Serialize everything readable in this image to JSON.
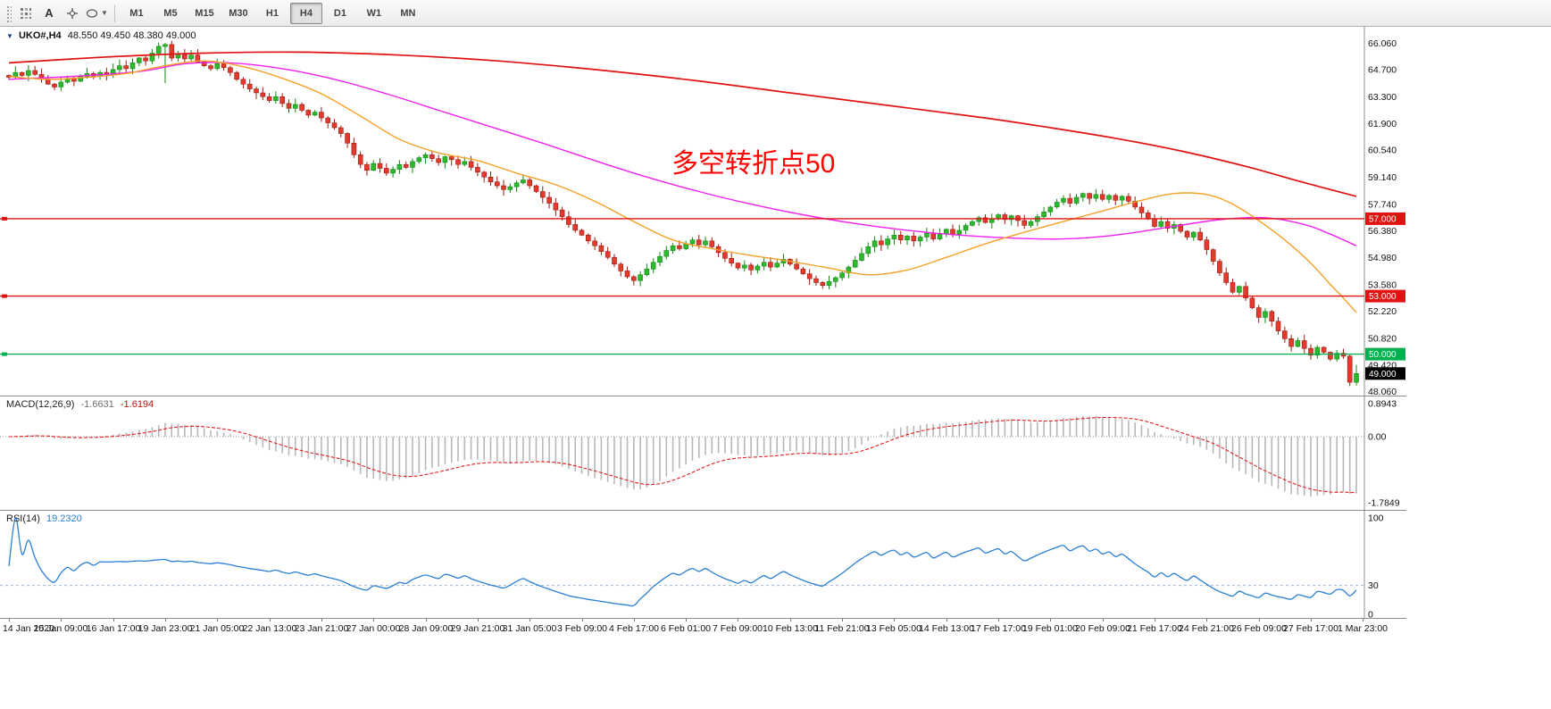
{
  "toolbar": {
    "tools": [
      {
        "name": "pattern",
        "label": ""
      },
      {
        "name": "annotation",
        "label": "A"
      },
      {
        "name": "crosshair",
        "label": ""
      },
      {
        "name": "shapes",
        "label": ""
      }
    ],
    "timeframes": [
      {
        "label": "M1",
        "active": false
      },
      {
        "label": "M5",
        "active": false
      },
      {
        "label": "M15",
        "active": false
      },
      {
        "label": "M30",
        "active": false
      },
      {
        "label": "H1",
        "active": false
      },
      {
        "label": "H4",
        "active": true
      },
      {
        "label": "D1",
        "active": false
      },
      {
        "label": "W1",
        "active": false
      },
      {
        "label": "MN",
        "active": false
      }
    ]
  },
  "chart": {
    "title_symbol": "UKO#,H4",
    "title_ohlc": "48.550 49.450 48.380 49.000",
    "annotation_text": "多空转折点50",
    "annotation_color": "#ff0000",
    "price_axis_labels": [
      "66.060",
      "64.700",
      "63.300",
      "61.900",
      "60.540",
      "59.140",
      "57.740",
      "56.380",
      "54.980",
      "53.580",
      "52.220",
      "50.820",
      "49.420",
      "48.060"
    ],
    "hlines": [
      {
        "price": 57.0,
        "label": "57.000",
        "color": "#e01212"
      },
      {
        "price": 53.0,
        "label": "53.000",
        "color": "#e01212"
      },
      {
        "price": 50.0,
        "label": "50.000",
        "color": "#00b050"
      }
    ],
    "current_price": {
      "value": 49.0,
      "label": "49.000",
      "badge_color": "#000000"
    }
  },
  "chart_data": {
    "type": "candlestick",
    "symbol": "UKO#",
    "period": "H4",
    "bars": 208,
    "price_range": [
      47.95,
      66.45
    ],
    "closes": [
      64.3,
      64.55,
      64.4,
      64.65,
      64.45,
      64.2,
      63.95,
      63.8,
      64.05,
      64.25,
      64.1,
      64.35,
      64.5,
      64.35,
      64.55,
      64.45,
      64.7,
      64.9,
      64.75,
      65.05,
      65.3,
      65.15,
      65.55,
      65.9,
      66.0,
      65.3,
      65.5,
      65.25,
      65.45,
      65.1,
      64.9,
      64.75,
      65.0,
      64.8,
      64.55,
      64.2,
      63.95,
      63.7,
      63.5,
      63.3,
      63.1,
      63.3,
      62.95,
      62.7,
      62.9,
      62.6,
      62.35,
      62.5,
      62.2,
      61.95,
      61.7,
      61.4,
      60.9,
      60.3,
      59.8,
      59.5,
      59.85,
      59.6,
      59.35,
      59.55,
      59.8,
      59.65,
      59.95,
      60.15,
      60.3,
      60.1,
      59.9,
      60.2,
      60.05,
      59.8,
      59.95,
      59.65,
      59.4,
      59.15,
      58.9,
      58.7,
      58.5,
      58.65,
      58.85,
      59.0,
      58.7,
      58.4,
      58.1,
      57.8,
      57.45,
      57.1,
      56.7,
      56.4,
      56.15,
      55.85,
      55.6,
      55.3,
      55.0,
      54.65,
      54.3,
      54.0,
      53.8,
      54.1,
      54.4,
      54.75,
      55.05,
      55.35,
      55.6,
      55.45,
      55.7,
      55.9,
      55.65,
      55.85,
      55.55,
      55.25,
      54.95,
      54.7,
      54.45,
      54.6,
      54.35,
      54.55,
      54.75,
      54.5,
      54.7,
      54.9,
      54.65,
      54.4,
      54.15,
      53.9,
      53.7,
      53.55,
      53.75,
      53.95,
      54.2,
      54.5,
      54.85,
      55.2,
      55.55,
      55.85,
      55.65,
      55.95,
      56.15,
      55.9,
      56.1,
      55.85,
      56.05,
      56.25,
      55.95,
      56.2,
      56.45,
      56.2,
      56.4,
      56.65,
      56.85,
      57.05,
      56.8,
      57.0,
      57.2,
      56.95,
      57.15,
      56.9,
      56.65,
      56.85,
      57.1,
      57.35,
      57.6,
      57.85,
      58.05,
      57.8,
      58.1,
      58.3,
      58.05,
      58.25,
      58.0,
      58.2,
      57.95,
      58.15,
      57.9,
      57.6,
      57.3,
      57.0,
      56.6,
      56.85,
      56.5,
      56.7,
      56.35,
      56.05,
      56.3,
      55.9,
      55.4,
      54.8,
      54.2,
      53.7,
      53.2,
      53.5,
      52.9,
      52.4,
      51.9,
      52.2,
      51.7,
      51.2,
      50.8,
      50.4,
      50.7,
      50.3,
      49.95,
      50.35,
      50.1,
      49.75,
      50.05,
      49.9,
      48.55,
      49.0
    ],
    "special_bars": [
      {
        "i": 24,
        "low": 64.0
      },
      {
        "i": 207,
        "open": 48.55,
        "high": 49.45,
        "low": 48.38,
        "close": 49.0
      }
    ],
    "ma_lines": [
      {
        "name": "ma-red",
        "color": "#e01212",
        "width": 1.7,
        "points": [
          [
            0,
            65.05
          ],
          [
            15,
            65.35
          ],
          [
            30,
            65.55
          ],
          [
            45,
            65.6
          ],
          [
            60,
            65.45
          ],
          [
            75,
            65.15
          ],
          [
            90,
            64.7
          ],
          [
            105,
            64.15
          ],
          [
            120,
            63.5
          ],
          [
            135,
            62.85
          ],
          [
            150,
            62.2
          ],
          [
            160,
            61.7
          ],
          [
            170,
            61.15
          ],
          [
            180,
            60.5
          ],
          [
            190,
            59.7
          ],
          [
            198,
            58.95
          ],
          [
            207,
            58.15
          ]
        ]
      },
      {
        "name": "ma-magenta",
        "color": "#f020f0",
        "width": 1.4,
        "points": [
          [
            0,
            64.2
          ],
          [
            10,
            64.35
          ],
          [
            20,
            64.6
          ],
          [
            27,
            65.0
          ],
          [
            34,
            65.05
          ],
          [
            42,
            64.75
          ],
          [
            50,
            64.2
          ],
          [
            58,
            63.45
          ],
          [
            66,
            62.6
          ],
          [
            74,
            61.75
          ],
          [
            82,
            60.9
          ],
          [
            90,
            60.0
          ],
          [
            98,
            59.15
          ],
          [
            106,
            58.4
          ],
          [
            114,
            57.75
          ],
          [
            122,
            57.2
          ],
          [
            130,
            56.75
          ],
          [
            138,
            56.4
          ],
          [
            146,
            56.15
          ],
          [
            154,
            56.0
          ],
          [
            162,
            55.95
          ],
          [
            170,
            56.15
          ],
          [
            178,
            56.55
          ],
          [
            186,
            56.95
          ],
          [
            193,
            57.05
          ],
          [
            199,
            56.7
          ],
          [
            203,
            56.2
          ],
          [
            207,
            55.6
          ]
        ]
      },
      {
        "name": "ma-orange",
        "color": "#f5a028",
        "width": 1.4,
        "points": [
          [
            0,
            64.35
          ],
          [
            6,
            64.2
          ],
          [
            12,
            64.3
          ],
          [
            18,
            64.5
          ],
          [
            24,
            64.9
          ],
          [
            30,
            65.15
          ],
          [
            36,
            64.85
          ],
          [
            42,
            64.25
          ],
          [
            48,
            63.45
          ],
          [
            54,
            62.3
          ],
          [
            60,
            61.1
          ],
          [
            66,
            60.4
          ],
          [
            72,
            60.0
          ],
          [
            78,
            59.35
          ],
          [
            84,
            58.75
          ],
          [
            90,
            57.9
          ],
          [
            96,
            56.85
          ],
          [
            102,
            55.9
          ],
          [
            108,
            55.45
          ],
          [
            114,
            55.1
          ],
          [
            120,
            54.8
          ],
          [
            126,
            54.45
          ],
          [
            132,
            54.1
          ],
          [
            138,
            54.35
          ],
          [
            144,
            55.0
          ],
          [
            150,
            55.7
          ],
          [
            156,
            56.3
          ],
          [
            162,
            56.85
          ],
          [
            168,
            57.4
          ],
          [
            174,
            57.95
          ],
          [
            179,
            58.3
          ],
          [
            184,
            58.25
          ],
          [
            188,
            57.75
          ],
          [
            192,
            56.9
          ],
          [
            196,
            55.9
          ],
          [
            200,
            54.7
          ],
          [
            203,
            53.6
          ],
          [
            205,
            52.9
          ],
          [
            207,
            52.15
          ]
        ]
      }
    ]
  },
  "macd": {
    "name": "MACD(12,26,9)",
    "value1": "-1.6631",
    "value2": "-1.6194",
    "fast": 12,
    "slow": 26,
    "signal": 9,
    "axis": [
      {
        "label": "0.8943",
        "v": 0.8943
      },
      {
        "label": "0.00",
        "v": 0
      },
      {
        "label": "-1.7849",
        "v": -1.7849
      }
    ],
    "histogram_color": "#b8b8b8",
    "signal_color": "#e02020"
  },
  "rsi": {
    "name": "RSI(14)",
    "value": "19.2320",
    "period": 14,
    "level": 30,
    "axis": [
      {
        "label": "100",
        "v": 100
      },
      {
        "label": "30",
        "v": 30
      },
      {
        "label": "0",
        "v": 0
      }
    ],
    "line_color": "#2a7fd4"
  },
  "time_axis": {
    "labels": [
      "14 Jan 2020",
      "15 Jan 09:00",
      "16 Jan 17:00",
      "19 Jan 23:00",
      "21 Jan 05:00",
      "22 Jan 13:00",
      "23 Jan 21:00",
      "27 Jan 00:00",
      "28 Jan 09:00",
      "29 Jan 21:00",
      "31 Jan 05:00",
      "3 Feb 09:00",
      "4 Feb 17:00",
      "6 Feb 01:00",
      "7 Feb 09:00",
      "10 Feb 13:00",
      "11 Feb 21:00",
      "13 Feb 05:00",
      "14 Feb 13:00",
      "17 Feb 17:00",
      "19 Feb 01:00",
      "20 Feb 09:00",
      "21 Feb 17:00",
      "24 Feb 21:00",
      "26 Feb 09:00",
      "27 Feb 17:00",
      "1 Mar 23:00"
    ]
  },
  "colors": {
    "up": "#2db82d",
    "up_stroke": "#128a12",
    "down": "#e23b2e",
    "down_stroke": "#9c1a10",
    "panel_border": "#8c8c8c",
    "axis_text": "#111111"
  }
}
